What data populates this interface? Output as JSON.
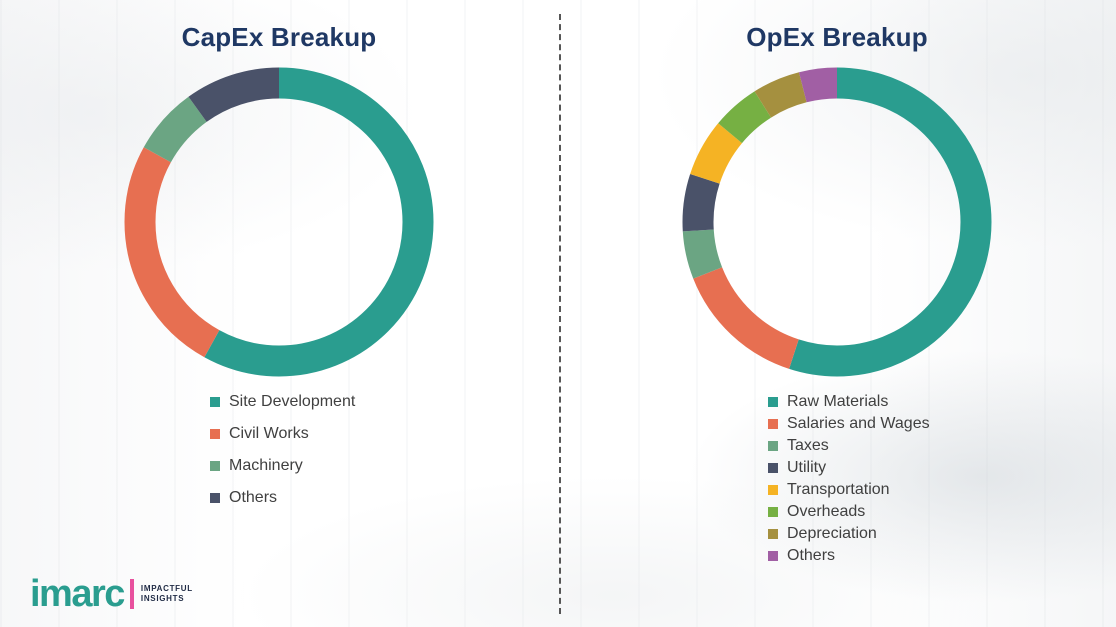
{
  "theme": {
    "title_color": "#1F3864",
    "legend_text_color": "#404040",
    "divider_color": "#565656",
    "background_color": "#FFFFFF"
  },
  "chart_data": [
    {
      "type": "pie",
      "subtype": "donut",
      "title": "CapEx Breakup",
      "categories": [
        "Site Development",
        "Civil Works",
        "Machinery",
        "Others"
      ],
      "values": [
        58,
        25,
        7,
        10
      ],
      "colors": [
        "#2A9D8F",
        "#E76F51",
        "#6BA583",
        "#4A5269"
      ],
      "legend_position": "below",
      "start_angle_deg": 0,
      "direction": "clockwise"
    },
    {
      "type": "pie",
      "subtype": "donut",
      "title": "OpEx Breakup",
      "categories": [
        "Raw Materials",
        "Salaries and Wages",
        "Taxes",
        "Utility",
        "Transportation",
        "Overheads",
        "Depreciation",
        "Others"
      ],
      "values": [
        55,
        14,
        5,
        6,
        6,
        5,
        5,
        4
      ],
      "colors": [
        "#2A9D8F",
        "#E76F51",
        "#6BA583",
        "#4A5269",
        "#F5B324",
        "#76B043",
        "#A5903F",
        "#A15FA4"
      ],
      "legend_position": "below",
      "start_angle_deg": 0,
      "direction": "clockwise"
    }
  ],
  "logo": {
    "brand": "imarc",
    "tagline": [
      "IMPACTFUL",
      "INSIGHTS"
    ],
    "brand_color": "#2A9D8F",
    "accent_color": "#E8519E",
    "tagline_color": "#1F2A44"
  }
}
